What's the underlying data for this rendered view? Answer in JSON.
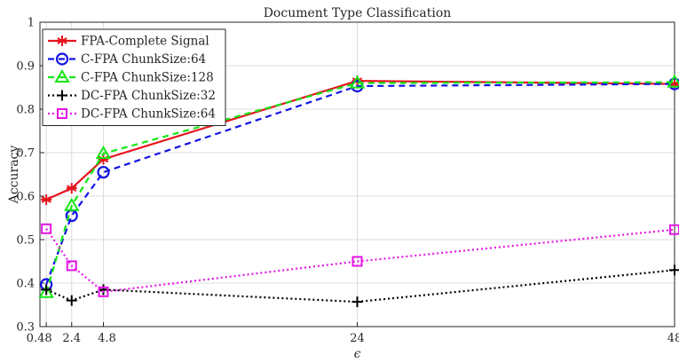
{
  "chart_data": {
    "type": "line",
    "title": "Document Type Classification",
    "xlabel": "ϵ",
    "ylabel": "Accuracy",
    "x": [
      0.48,
      2.4,
      4.8,
      24,
      48
    ],
    "x_tick_labels": [
      "0.48",
      "2.4",
      "4.8",
      "24",
      "48"
    ],
    "xlim": [
      0,
      48
    ],
    "ylim": [
      0.3,
      1
    ],
    "y_ticks": [
      0.3,
      0.4,
      0.5,
      0.6,
      0.7,
      0.8,
      0.9,
      1
    ],
    "y_tick_labels": [
      "0.3",
      "0.4",
      "0.5",
      "0.6",
      "0.7",
      "0.8",
      "0.9",
      "1"
    ],
    "grid": true,
    "legend_position": "top-left",
    "series": [
      {
        "name": "FPA-Complete Signal",
        "values": [
          0.592,
          0.618,
          0.685,
          0.865,
          0.858
        ],
        "color": "#e6141e",
        "line_style": "solid",
        "marker": "asterisk"
      },
      {
        "name": "C-FPA ChunkSize:64",
        "values": [
          0.397,
          0.555,
          0.655,
          0.853,
          0.858
        ],
        "color": "#1414e6",
        "line_style": "dashed",
        "marker": "circle"
      },
      {
        "name": "C-FPA ChunkSize:128",
        "values": [
          0.378,
          0.578,
          0.698,
          0.86,
          0.862
        ],
        "color": "#14e614",
        "line_style": "dashed",
        "marker": "triangle"
      },
      {
        "name": "DC-FPA ChunkSize:32",
        "values": [
          0.385,
          0.36,
          0.385,
          0.357,
          0.43
        ],
        "color": "#000000",
        "line_style": "dotted",
        "marker": "plus"
      },
      {
        "name": "DC-FPA ChunkSize:64",
        "values": [
          0.525,
          0.44,
          0.38,
          0.45,
          0.523
        ],
        "color": "#e614e6",
        "line_style": "dotted",
        "marker": "square"
      }
    ]
  }
}
